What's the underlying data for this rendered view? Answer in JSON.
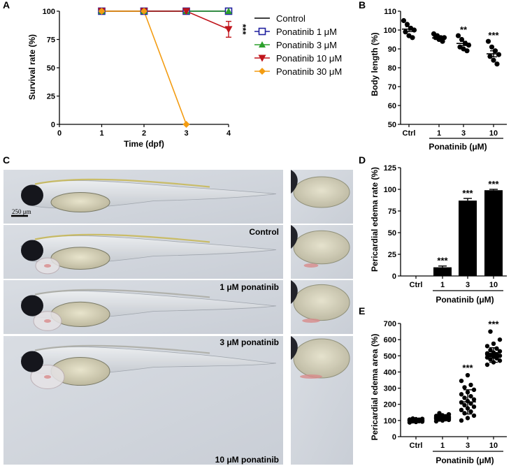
{
  "panels": {
    "a": "A",
    "b": "B",
    "c": "C",
    "d": "D",
    "e": "E"
  },
  "scale_bar": "250 μm",
  "photos": [
    {
      "label": "Control"
    },
    {
      "label": "1 μM ponatinib"
    },
    {
      "label": "3 μM ponatinib"
    },
    {
      "label": "10 μM ponatinib"
    }
  ],
  "colors": {
    "control": "#000000",
    "p1": "#1f1f9e",
    "p3": "#2ca02c",
    "p10": "#c0141b",
    "p30": "#f39c12",
    "bar": "#000000"
  },
  "chart_data": [
    {
      "id": "A",
      "type": "line",
      "xlabel": "Time (dpf)",
      "ylabel": "Survival rate (%)",
      "xlim": [
        0,
        4
      ],
      "ylim": [
        0,
        100
      ],
      "xticks": [
        0,
        1,
        2,
        3,
        4
      ],
      "yticks": [
        0,
        25,
        50,
        75,
        100
      ],
      "x": [
        1,
        2,
        3,
        4
      ],
      "series": [
        {
          "name": "Control",
          "values": [
            100,
            100,
            100,
            100
          ],
          "marker": "none"
        },
        {
          "name": "Ponatinib 1 μM",
          "values": [
            100,
            100,
            100,
            100
          ],
          "marker": "square-open"
        },
        {
          "name": "Ponatinib 3 μM",
          "values": [
            100,
            100,
            100,
            100
          ],
          "marker": "triangle-up"
        },
        {
          "name": "Ponatinib 10 μM",
          "values": [
            100,
            100,
            100,
            84
          ],
          "error": [
            0,
            0,
            0,
            7
          ],
          "marker": "triangle-down"
        },
        {
          "name": "Ponatinib 30 μM",
          "values": [
            100,
            100,
            0,
            null
          ],
          "marker": "diamond"
        }
      ],
      "annotations": [
        {
          "x": 4,
          "text": "***"
        }
      ],
      "legend": "right"
    },
    {
      "id": "B",
      "type": "scatter",
      "ylabel": "Body length (%)",
      "ylim": [
        50,
        110
      ],
      "yticks": [
        50,
        60,
        70,
        80,
        90,
        100,
        110
      ],
      "categories": [
        "Ctrl",
        "1",
        "3",
        "10"
      ],
      "group_label": "Ponatinib (μM)",
      "points": [
        [
          105,
          103,
          101,
          100,
          99,
          97,
          96
        ],
        [
          98,
          97,
          96,
          96,
          96,
          95,
          94
        ],
        [
          97,
          95,
          93,
          92,
          91,
          90,
          89
        ],
        [
          94,
          91,
          89,
          87,
          86,
          84,
          82
        ]
      ],
      "means": [
        100.5,
        95.8,
        92.9,
        87.4
      ],
      "sem": [
        1.3,
        0.5,
        1.1,
        1.6
      ],
      "annotations": [
        "",
        "",
        "**",
        "***"
      ]
    },
    {
      "id": "D",
      "type": "bar",
      "ylabel": "Pericardial edema rate (%)",
      "ylim": [
        0,
        125
      ],
      "yticks": [
        0,
        25,
        50,
        75,
        100,
        125
      ],
      "categories": [
        "Ctrl",
        "1",
        "3",
        "10"
      ],
      "values": [
        0,
        10,
        87,
        99
      ],
      "error": [
        0,
        1.5,
        2.5,
        1
      ],
      "group_label": "Ponatinib (μM)",
      "annotations": [
        "",
        "***",
        "***",
        "***"
      ]
    },
    {
      "id": "E",
      "type": "scatter",
      "ylabel": "Pericardial edema area (%)",
      "ylim": [
        0,
        700
      ],
      "yticks": [
        0,
        100,
        200,
        300,
        400,
        500,
        600,
        700
      ],
      "categories": [
        "Ctrl",
        "1",
        "3",
        "10"
      ],
      "group_label": "Ponatinib (μM)",
      "points": [
        [
          88,
          91,
          93,
          95,
          96,
          97,
          98,
          99,
          100,
          100,
          101,
          102,
          103,
          104,
          105,
          106,
          108,
          110,
          112
        ],
        [
          95,
          100,
          104,
          106,
          108,
          110,
          112,
          114,
          115,
          116,
          118,
          120,
          122,
          124,
          126,
          128,
          132,
          138,
          145
        ],
        [
          100,
          115,
          130,
          145,
          155,
          165,
          175,
          185,
          195,
          205,
          212,
          220,
          230,
          240,
          250,
          262,
          275,
          290,
          305,
          320,
          345,
          380
        ],
        [
          445,
          460,
          470,
          478,
          485,
          490,
          495,
          500,
          505,
          510,
          515,
          520,
          528,
          535,
          545,
          560,
          575,
          600,
          650
        ]
      ],
      "means": [
        100,
        118,
        215,
        505
      ],
      "sd": [
        7,
        14,
        75,
        45
      ],
      "annotations": [
        "",
        "",
        "***",
        "***"
      ]
    }
  ]
}
